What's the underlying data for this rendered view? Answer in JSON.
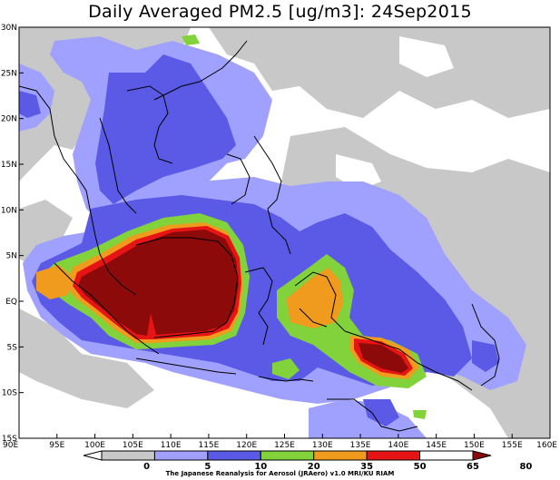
{
  "title": "Daily Averaged PM2.5 [ug/m3]: 24Sep2015",
  "credit": "The Japanese Reanalysis for Aerosol (JRAero) v1.0 MRI/KU RIAM",
  "lat_ticks": [
    "30N",
    "25N",
    "20N",
    "15N",
    "10N",
    "5N",
    "EQ",
    "5S",
    "10S",
    "15S"
  ],
  "lon_ticks": [
    "90E",
    "95E",
    "100E",
    "105E",
    "110E",
    "115E",
    "120E",
    "125E",
    "130E",
    "135E",
    "140E",
    "145E",
    "150E",
    "155E",
    "160E"
  ],
  "colorbar": {
    "labels": [
      "0",
      "5",
      "10",
      "20",
      "35",
      "50",
      "65",
      "80"
    ],
    "colors": [
      "#ffffff",
      "#c8c8c8",
      "#a0a0ff",
      "#5a5ae6",
      "#82d23c",
      "#f09b1e",
      "#e61414",
      "#8c0a0a"
    ]
  },
  "palette": {
    "level_5": "#c8c8c8",
    "level_10": "#a0a0ff",
    "level_20": "#5a5ae6",
    "level_35": "#82d23c",
    "level_50": "#f09b1e",
    "level_65": "#e61414",
    "level_80": "#8c0a0a"
  }
}
